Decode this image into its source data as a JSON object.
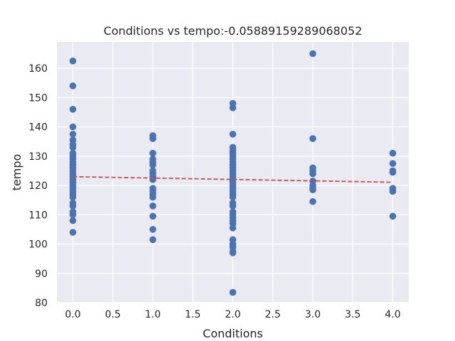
{
  "chart_data": {
    "type": "scatter",
    "title": "Conditions vs tempo:-0.05889159289068052",
    "xlabel": "Conditions",
    "ylabel": "tempo",
    "xlim": [
      -0.2,
      4.2
    ],
    "ylim": [
      80,
      169
    ],
    "xticks": [
      0.0,
      0.5,
      1.0,
      1.5,
      2.0,
      2.5,
      3.0,
      3.5,
      4.0
    ],
    "xtick_labels": [
      "0.0",
      "0.5",
      "1.0",
      "1.5",
      "2.0",
      "2.5",
      "3.0",
      "3.5",
      "4.0"
    ],
    "yticks": [
      80,
      90,
      100,
      110,
      120,
      130,
      140,
      150,
      160
    ],
    "ytick_labels": [
      "80",
      "90",
      "100",
      "110",
      "120",
      "130",
      "140",
      "150",
      "160"
    ],
    "grid": true,
    "colors": {
      "background": "#EAEAF2",
      "grid": "#FFFFFF",
      "points": "#4C72B0",
      "trendline": "#C44E52"
    },
    "series": [
      {
        "kind": "points",
        "points": [
          [
            0,
            162.5
          ],
          [
            0,
            154
          ],
          [
            0,
            146
          ],
          [
            0,
            140
          ],
          [
            0,
            137.5
          ],
          [
            0,
            135.5
          ],
          [
            0,
            134
          ],
          [
            0,
            133
          ],
          [
            0,
            131
          ],
          [
            0,
            130
          ],
          [
            0,
            129
          ],
          [
            0,
            128
          ],
          [
            0,
            127
          ],
          [
            0,
            126
          ],
          [
            0,
            125
          ],
          [
            0,
            124
          ],
          [
            0,
            123
          ],
          [
            0,
            122
          ],
          [
            0,
            121
          ],
          [
            0,
            120
          ],
          [
            0,
            119
          ],
          [
            0,
            118
          ],
          [
            0,
            117
          ],
          [
            0,
            116
          ],
          [
            0,
            114
          ],
          [
            0,
            113
          ],
          [
            0,
            111
          ],
          [
            0,
            110
          ],
          [
            0,
            108
          ],
          [
            0,
            104
          ],
          [
            1,
            137
          ],
          [
            1,
            136
          ],
          [
            1,
            131
          ],
          [
            1,
            129
          ],
          [
            1,
            128
          ],
          [
            1,
            127
          ],
          [
            1,
            125
          ],
          [
            1,
            124
          ],
          [
            1,
            123
          ],
          [
            1,
            122
          ],
          [
            1,
            119
          ],
          [
            1,
            118
          ],
          [
            1,
            117
          ],
          [
            1,
            116
          ],
          [
            1,
            113
          ],
          [
            1,
            109.5
          ],
          [
            1,
            105
          ],
          [
            1,
            101.5
          ],
          [
            2,
            148
          ],
          [
            2,
            146.5
          ],
          [
            2,
            137.5
          ],
          [
            2,
            133
          ],
          [
            2,
            132
          ],
          [
            2,
            131
          ],
          [
            2,
            130
          ],
          [
            2,
            129
          ],
          [
            2,
            128
          ],
          [
            2,
            127
          ],
          [
            2,
            126
          ],
          [
            2,
            125
          ],
          [
            2,
            124
          ],
          [
            2,
            123
          ],
          [
            2,
            122
          ],
          [
            2,
            121
          ],
          [
            2,
            120
          ],
          [
            2,
            119
          ],
          [
            2,
            118
          ],
          [
            2,
            117
          ],
          [
            2,
            116
          ],
          [
            2,
            114
          ],
          [
            2,
            113
          ],
          [
            2,
            111
          ],
          [
            2,
            110
          ],
          [
            2,
            109
          ],
          [
            2,
            108
          ],
          [
            2,
            107
          ],
          [
            2,
            105.5
          ],
          [
            2,
            101.5
          ],
          [
            2,
            100
          ],
          [
            2,
            99
          ],
          [
            2,
            97.5
          ],
          [
            2,
            97
          ],
          [
            2,
            83.5
          ],
          [
            3,
            165
          ],
          [
            3,
            136
          ],
          [
            3,
            126
          ],
          [
            3,
            125
          ],
          [
            3,
            124
          ],
          [
            3,
            121.5
          ],
          [
            3,
            120
          ],
          [
            3,
            119
          ],
          [
            3,
            118.5
          ],
          [
            3,
            114.5
          ],
          [
            4,
            131
          ],
          [
            4,
            127.5
          ],
          [
            4,
            125
          ],
          [
            4,
            124.5
          ],
          [
            4,
            119
          ],
          [
            4,
            118
          ],
          [
            4,
            109.5
          ]
        ]
      },
      {
        "kind": "trendline",
        "points": [
          [
            0,
            123.0
          ],
          [
            4,
            121.1
          ]
        ]
      }
    ]
  }
}
